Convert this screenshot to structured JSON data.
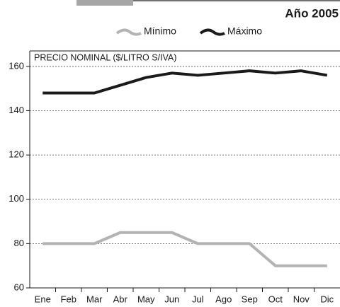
{
  "chart_data": {
    "type": "line",
    "title": "Año 2005",
    "ylabel": "PRECIO NOMINAL ($/LITRO S/IVA)",
    "categories": [
      "Ene",
      "Feb",
      "Mar",
      "Abr",
      "May",
      "Jun",
      "Jul",
      "Ago",
      "Sep",
      "Oct",
      "Nov",
      "Dic"
    ],
    "series": [
      {
        "name": "Mínimo",
        "color": "#b3b3b3",
        "values": [
          80,
          80,
          80,
          85,
          85,
          85,
          80,
          80,
          80,
          70,
          70,
          70
        ]
      },
      {
        "name": "Máximo",
        "color": "#1a1a1a",
        "values": [
          148,
          148,
          148,
          151.5,
          155,
          157,
          156,
          157,
          158,
          157,
          158,
          156
        ]
      }
    ],
    "ylim": [
      60,
      167
    ],
    "yticks": [
      60,
      80,
      100,
      120,
      140,
      160
    ],
    "grid": true
  }
}
